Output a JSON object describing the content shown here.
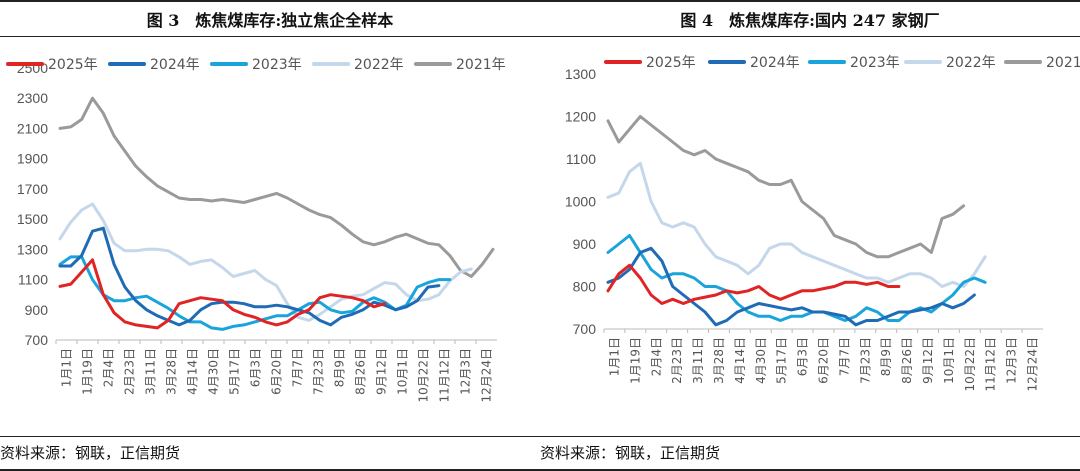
{
  "charts": [
    {
      "title": "图 3　炼焦煤库存:独立焦企全样本",
      "source": "资料来源：钢联，正信期货"
    },
    {
      "title": "图 4　炼焦煤库存:国内 247 家钢厂",
      "source": "资料来源：钢联，正信期货"
    }
  ],
  "chart_data": [
    {
      "type": "line",
      "ylim": [
        700,
        2500
      ],
      "yticks": [
        700,
        900,
        1100,
        1300,
        1500,
        1700,
        1900,
        2100,
        2300,
        2500
      ],
      "x_tick_labels": [
        "1月1日",
        "1月19日",
        "2月4日",
        "2月23日",
        "3月11日",
        "3月28日",
        "4月14日",
        "4月30日",
        "5月17日",
        "6月3日",
        "6月20日",
        "7月7日",
        "7月23日",
        "8月9日",
        "8月26日",
        "9月12日",
        "10月1日",
        "10月22日",
        "11月12日",
        "12月3日",
        "12月24日"
      ],
      "legend_position": "top",
      "grid": false,
      "series": [
        {
          "name": "2025年",
          "color": "#e02424",
          "values": [
            1055,
            1070,
            1150,
            1230,
            1000,
            880,
            820,
            800,
            790,
            780,
            830,
            940,
            960,
            980,
            970,
            960,
            900,
            870,
            850,
            820,
            800,
            820,
            870,
            900,
            980,
            1000,
            990,
            980,
            960,
            920,
            940
          ]
        },
        {
          "name": "2024年",
          "color": "#1f6bb5",
          "values": [
            1190,
            1190,
            1260,
            1420,
            1440,
            1200,
            1050,
            960,
            900,
            860,
            830,
            800,
            830,
            900,
            940,
            950,
            950,
            940,
            920,
            920,
            930,
            920,
            900,
            880,
            830,
            800,
            850,
            870,
            900,
            950,
            930,
            900,
            920,
            960,
            1050,
            1060
          ]
        },
        {
          "name": "2023年",
          "color": "#1aa4dc",
          "values": [
            1200,
            1250,
            1250,
            1100,
            1000,
            960,
            960,
            980,
            990,
            950,
            910,
            860,
            820,
            820,
            780,
            770,
            790,
            800,
            820,
            840,
            860,
            860,
            900,
            940,
            950,
            900,
            880,
            890,
            950,
            980,
            950,
            900,
            930,
            1050,
            1080,
            1100,
            1100
          ]
        },
        {
          "name": "2022年",
          "color": "#c5d7ea",
          "values": [
            1370,
            1480,
            1560,
            1600,
            1490,
            1340,
            1290,
            1290,
            1300,
            1300,
            1290,
            1250,
            1200,
            1220,
            1230,
            1180,
            1120,
            1140,
            1160,
            1100,
            1060,
            940,
            850,
            830,
            870,
            920,
            970,
            990,
            1000,
            1040,
            1080,
            1070,
            1000,
            960,
            970,
            1000,
            1090,
            1150,
            1170
          ]
        },
        {
          "name": "2021年",
          "color": "#9a9a9a",
          "values": [
            2100,
            2110,
            2160,
            2300,
            2200,
            2050,
            1950,
            1850,
            1780,
            1720,
            1680,
            1640,
            1630,
            1630,
            1620,
            1630,
            1620,
            1610,
            1630,
            1650,
            1670,
            1640,
            1600,
            1560,
            1530,
            1510,
            1460,
            1400,
            1350,
            1330,
            1350,
            1380,
            1400,
            1370,
            1340,
            1330,
            1260,
            1160,
            1120,
            1200,
            1300
          ]
        }
      ]
    },
    {
      "type": "line",
      "ylim": [
        700,
        1300
      ],
      "yticks": [
        700,
        800,
        900,
        1000,
        1100,
        1200,
        1300
      ],
      "x_tick_labels": [
        "1月1日",
        "1月19日",
        "2月4日",
        "2月23日",
        "3月11日",
        "3月28日",
        "4月14日",
        "4月30日",
        "5月17日",
        "6月3日",
        "6月20日",
        "7月7日",
        "7月23日",
        "8月9日",
        "8月26日",
        "9月12日",
        "10月1日",
        "10月22日",
        "11月12日",
        "12月3日",
        "12月24日"
      ],
      "legend_position": "top",
      "grid": false,
      "series": [
        {
          "name": "2025年",
          "color": "#e02424",
          "values": [
            790,
            830,
            850,
            820,
            780,
            760,
            770,
            760,
            770,
            775,
            780,
            790,
            785,
            790,
            800,
            780,
            770,
            780,
            790,
            790,
            795,
            800,
            810,
            810,
            805,
            810,
            800,
            800
          ]
        },
        {
          "name": "2024年",
          "color": "#1f6bb5",
          "values": [
            810,
            820,
            840,
            880,
            890,
            860,
            800,
            780,
            760,
            740,
            710,
            720,
            740,
            750,
            760,
            755,
            750,
            745,
            750,
            740,
            740,
            735,
            730,
            710,
            720,
            720,
            730,
            740,
            740,
            745,
            750,
            760,
            750,
            760,
            780
          ]
        },
        {
          "name": "2023年",
          "color": "#1aa4dc",
          "values": [
            880,
            900,
            920,
            880,
            840,
            820,
            830,
            830,
            820,
            800,
            800,
            790,
            760,
            740,
            730,
            730,
            720,
            730,
            730,
            740,
            740,
            730,
            720,
            730,
            750,
            740,
            720,
            720,
            740,
            750,
            740,
            760,
            780,
            810,
            820,
            810
          ]
        },
        {
          "name": "2022年",
          "color": "#c5d7ea",
          "values": [
            1010,
            1020,
            1070,
            1090,
            1000,
            950,
            940,
            950,
            940,
            900,
            870,
            860,
            850,
            830,
            850,
            890,
            900,
            900,
            880,
            870,
            860,
            850,
            840,
            830,
            820,
            820,
            810,
            820,
            830,
            830,
            820,
            800,
            810,
            800,
            830,
            870
          ]
        },
        {
          "name": "2021年",
          "color": "#9a9a9a",
          "values": [
            1190,
            1140,
            1170,
            1200,
            1180,
            1160,
            1140,
            1120,
            1110,
            1120,
            1100,
            1090,
            1080,
            1070,
            1050,
            1040,
            1040,
            1050,
            1000,
            980,
            960,
            920,
            910,
            900,
            880,
            870,
            870,
            880,
            890,
            900,
            880,
            960,
            970,
            990
          ]
        }
      ]
    }
  ]
}
